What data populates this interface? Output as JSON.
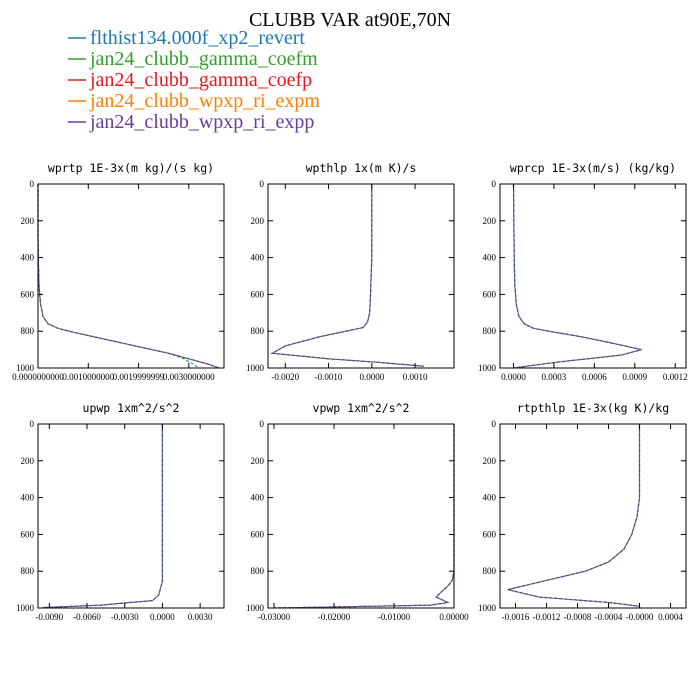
{
  "title": "CLUBB VAR at90E,70N",
  "legend": [
    {
      "label": "flthist134.000f_xp2_revert",
      "color": "#1f78b4"
    },
    {
      "label": "jan24_clubb_gamma_coefm",
      "color": "#33a02c"
    },
    {
      "label": "jan24_clubb_gamma_coefp",
      "color": "#e31a1c"
    },
    {
      "label": "jan24_clubb_wpxp_ri_expm",
      "color": "#ff7f00"
    },
    {
      "label": "jan24_clubb_wpxp_ri_expp",
      "color": "#6a3d9a"
    }
  ],
  "chart_data": [
    {
      "type": "line",
      "title": "wprtp  1E-3x(m kg)/(s kg)",
      "xlim": [
        0,
        0.0037
      ],
      "ylim": [
        1000,
        0
      ],
      "xticks": [
        0,
        0.001,
        0.002,
        0.003
      ],
      "xtick_labels": [
        "0.0000000000",
        "0.0010000000",
        "0.0019999999",
        "0.0030000000"
      ],
      "yticks": [
        0,
        200,
        400,
        600,
        800,
        1000
      ],
      "series": [
        {
          "x": [
            0,
            0,
            1e-05,
            2e-05,
            5e-05,
            0.0001,
            0.0002,
            0.0004,
            0.0007,
            0.0011,
            0.0016,
            0.0021,
            0.0026,
            0.003,
            0.0034,
            0.0036
          ],
          "y": [
            0,
            300,
            450,
            550,
            650,
            720,
            760,
            785,
            805,
            830,
            860,
            890,
            920,
            950,
            980,
            1000
          ]
        },
        {
          "x": [
            0,
            0,
            1e-05,
            2e-05,
            5e-05,
            0.0001,
            0.0002,
            0.0004,
            0.0007,
            0.0011,
            0.0016,
            0.0021,
            0.0026,
            0.0029,
            0.0031,
            0.0032
          ],
          "y": [
            0,
            300,
            450,
            550,
            650,
            720,
            760,
            785,
            805,
            830,
            860,
            890,
            920,
            950,
            980,
            1000
          ]
        },
        {
          "x": [
            0,
            0,
            1e-05,
            2e-05,
            5e-05,
            0.0001,
            0.0002,
            0.0004,
            0.0007,
            0.0011,
            0.0016,
            0.0021,
            0.0026,
            0.003,
            0.0034,
            0.0036
          ],
          "y": [
            0,
            300,
            450,
            550,
            650,
            720,
            760,
            785,
            805,
            830,
            860,
            890,
            920,
            950,
            980,
            1000
          ]
        },
        {
          "x": [
            0,
            0,
            1e-05,
            2e-05,
            5e-05,
            0.0001,
            0.0002,
            0.0004,
            0.0007,
            0.0011,
            0.0016,
            0.0021,
            0.0026,
            0.003,
            0.0034,
            0.0036
          ],
          "y": [
            0,
            300,
            450,
            550,
            650,
            720,
            760,
            785,
            805,
            830,
            860,
            890,
            920,
            950,
            980,
            1000
          ]
        },
        {
          "x": [
            0,
            0,
            1e-05,
            2e-05,
            5e-05,
            0.0001,
            0.0002,
            0.0004,
            0.0007,
            0.0011,
            0.0016,
            0.0021,
            0.0026,
            0.003,
            0.0034,
            0.0036
          ],
          "y": [
            0,
            300,
            450,
            550,
            650,
            720,
            760,
            785,
            805,
            830,
            860,
            890,
            920,
            950,
            980,
            1000
          ]
        }
      ]
    },
    {
      "type": "line",
      "title": "wpthlp  1x(m K)/s",
      "xlim": [
        -0.0024,
        0.0019
      ],
      "ylim": [
        1000,
        0
      ],
      "xticks": [
        -0.002,
        -0.001,
        0,
        0.001
      ],
      "xtick_labels": [
        "-0.0020",
        "-0.0010",
        "0.0000",
        "0.0010"
      ],
      "yticks": [
        0,
        200,
        400,
        600,
        800,
        1000
      ],
      "series": [
        {
          "x": [
            0,
            0,
            -3e-05,
            -5e-05,
            -0.0001,
            -0.0002,
            -0.0006,
            -0.0012,
            -0.002,
            -0.0023,
            -0.001,
            0.0002,
            0.0012
          ],
          "y": [
            0,
            400,
            600,
            700,
            750,
            780,
            800,
            830,
            880,
            920,
            950,
            970,
            990
          ]
        },
        {
          "x": [
            0,
            0,
            -3e-05,
            -5e-05,
            -0.0001,
            -0.0002,
            -0.0006,
            -0.0012,
            -0.002,
            -0.0023,
            -0.001,
            0.0002,
            0.0012
          ],
          "y": [
            0,
            400,
            600,
            700,
            750,
            780,
            800,
            830,
            880,
            920,
            950,
            970,
            990
          ]
        },
        {
          "x": [
            0,
            0,
            -3e-05,
            -5e-05,
            -0.0001,
            -0.0002,
            -0.0006,
            -0.0012,
            -0.002,
            -0.0023,
            -0.001,
            0.0002,
            0.0012
          ],
          "y": [
            0,
            400,
            600,
            700,
            750,
            780,
            800,
            830,
            880,
            920,
            950,
            970,
            990
          ]
        },
        {
          "x": [
            0,
            0,
            -3e-05,
            -5e-05,
            -0.0001,
            -0.0002,
            -0.0006,
            -0.0012,
            -0.002,
            -0.0023,
            -0.001,
            0.0002,
            0.0012
          ],
          "y": [
            0,
            400,
            600,
            700,
            750,
            780,
            800,
            830,
            880,
            920,
            950,
            970,
            990
          ]
        },
        {
          "x": [
            0,
            0,
            -3e-05,
            -5e-05,
            -0.0001,
            -0.0002,
            -0.0006,
            -0.0012,
            -0.002,
            -0.0023,
            -0.001,
            0.0002,
            0.0012
          ],
          "y": [
            0,
            400,
            600,
            700,
            750,
            780,
            800,
            830,
            880,
            920,
            950,
            970,
            990
          ]
        }
      ]
    },
    {
      "type": "line",
      "title": "wprcp  1E-3x(m/s) (kg/kg)",
      "xlim": [
        -0.0001,
        0.00128
      ],
      "ylim": [
        1000,
        0
      ],
      "xticks": [
        0,
        0.0003,
        0.0006,
        0.0009,
        0.0012
      ],
      "xtick_labels": [
        "0.0000",
        "0.0003",
        "0.0006",
        "0.0009",
        "0.0012"
      ],
      "yticks": [
        0,
        200,
        400,
        600,
        800,
        1000
      ],
      "series": [
        {
          "x": [
            0,
            5e-06,
            1e-05,
            2e-05,
            4e-05,
            8e-05,
            0.00015,
            0.0003,
            0.0005,
            0.0007,
            0.00095,
            0.0008,
            0.0003,
            0
          ],
          "y": [
            0,
            400,
            550,
            650,
            720,
            760,
            785,
            805,
            830,
            860,
            900,
            930,
            970,
            1000
          ]
        },
        {
          "x": [
            0,
            5e-06,
            1e-05,
            2e-05,
            4e-05,
            8e-05,
            0.00015,
            0.0003,
            0.0005,
            0.0007,
            0.00095,
            0.0008,
            0.0003,
            0
          ],
          "y": [
            0,
            400,
            550,
            650,
            720,
            760,
            785,
            805,
            830,
            860,
            900,
            930,
            970,
            1000
          ]
        },
        {
          "x": [
            0,
            5e-06,
            1e-05,
            2e-05,
            4e-05,
            8e-05,
            0.00015,
            0.0003,
            0.0005,
            0.0007,
            0.00095,
            0.0008,
            0.0003,
            0
          ],
          "y": [
            0,
            400,
            550,
            650,
            720,
            760,
            785,
            805,
            830,
            860,
            900,
            930,
            970,
            1000
          ]
        },
        {
          "x": [
            0,
            5e-06,
            1e-05,
            2e-05,
            4e-05,
            8e-05,
            0.00015,
            0.0003,
            0.0005,
            0.0007,
            0.00095,
            0.0008,
            0.0003,
            0
          ],
          "y": [
            0,
            400,
            550,
            650,
            720,
            760,
            785,
            805,
            830,
            860,
            900,
            930,
            970,
            1000
          ]
        },
        {
          "x": [
            0,
            5e-06,
            1e-05,
            2e-05,
            4e-05,
            8e-05,
            0.00015,
            0.0003,
            0.0005,
            0.0007,
            0.00095,
            0.0008,
            0.0003,
            0
          ],
          "y": [
            0,
            400,
            550,
            650,
            720,
            760,
            785,
            805,
            830,
            860,
            900,
            930,
            970,
            1000
          ]
        }
      ]
    },
    {
      "type": "line",
      "title": "upwp  1xm^2/s^2",
      "xlim": [
        -0.0099,
        0.0049
      ],
      "ylim": [
        1000,
        0
      ],
      "xticks": [
        -0.009,
        -0.006,
        -0.003,
        0,
        0.003
      ],
      "xtick_labels": [
        "-0.0090",
        "-0.0060",
        "-0.0030",
        "0.0000",
        "0.0030"
      ],
      "yticks": [
        0,
        200,
        400,
        600,
        800,
        1000
      ],
      "series": [
        {
          "x": [
            0,
            0,
            -0.0001,
            -0.0003,
            -0.0008,
            -0.005,
            -0.0095
          ],
          "y": [
            0,
            850,
            880,
            930,
            960,
            985,
            998
          ]
        },
        {
          "x": [
            0,
            0,
            -0.0001,
            -0.0003,
            -0.0008,
            -0.005,
            -0.0095
          ],
          "y": [
            0,
            850,
            880,
            930,
            960,
            985,
            998
          ]
        },
        {
          "x": [
            0,
            0,
            -0.0001,
            -0.0003,
            -0.0008,
            -0.005,
            -0.0095
          ],
          "y": [
            0,
            850,
            880,
            930,
            960,
            985,
            998
          ]
        },
        {
          "x": [
            0,
            0,
            -0.0001,
            -0.0003,
            -0.0008,
            -0.005,
            -0.0095
          ],
          "y": [
            0,
            850,
            880,
            930,
            960,
            985,
            998
          ]
        },
        {
          "x": [
            0,
            0,
            -0.0001,
            -0.0003,
            -0.0008,
            -0.005,
            -0.0095
          ],
          "y": [
            0,
            850,
            880,
            930,
            960,
            985,
            998
          ]
        }
      ]
    },
    {
      "type": "line",
      "title": "vpwp  1xm^2/s^2",
      "xlim": [
        -0.031,
        0.0
      ],
      "ylim": [
        1000,
        0
      ],
      "xticks": [
        -0.03,
        -0.02,
        -0.01,
        0
      ],
      "xtick_labels": [
        "-0.03000",
        "-0.02000",
        "-0.01000",
        "0.00000"
      ],
      "yticks": [
        0,
        200,
        400,
        600,
        800,
        1000
      ],
      "series": [
        {
          "x": [
            0,
            0,
            -0.0003,
            -0.001,
            -0.002,
            -0.003,
            -0.002,
            -0.001,
            -0.004,
            -0.03
          ],
          "y": [
            0,
            800,
            850,
            880,
            910,
            940,
            955,
            970,
            985,
            1000
          ]
        },
        {
          "x": [
            0,
            0,
            -0.0003,
            -0.001,
            -0.002,
            -0.003,
            -0.002,
            -0.001,
            -0.004,
            -0.03
          ],
          "y": [
            0,
            800,
            850,
            880,
            910,
            940,
            955,
            970,
            985,
            1000
          ]
        },
        {
          "x": [
            0,
            0,
            -0.0003,
            -0.001,
            -0.002,
            -0.003,
            -0.002,
            -0.001,
            -0.004,
            -0.03
          ],
          "y": [
            0,
            800,
            850,
            880,
            910,
            940,
            955,
            970,
            985,
            1000
          ]
        },
        {
          "x": [
            0,
            0,
            -0.0003,
            -0.001,
            -0.002,
            -0.003,
            -0.002,
            -0.001,
            -0.004,
            -0.03
          ],
          "y": [
            0,
            800,
            850,
            880,
            910,
            940,
            955,
            970,
            985,
            1000
          ]
        },
        {
          "x": [
            0,
            0,
            -0.0003,
            -0.001,
            -0.002,
            -0.003,
            -0.002,
            -0.001,
            -0.004,
            -0.03
          ],
          "y": [
            0,
            800,
            850,
            880,
            910,
            940,
            955,
            970,
            985,
            1000
          ]
        }
      ]
    },
    {
      "type": "line",
      "title": "rtpthlp  1E-3x(kg K)/kg",
      "xlim": [
        -0.0018,
        0.0006
      ],
      "ylim": [
        1000,
        0
      ],
      "xticks": [
        -0.0016,
        -0.0012,
        -0.0008,
        -0.0004,
        0,
        0.0004
      ],
      "xtick_labels": [
        "-0.0016",
        "-0.0012",
        "-0.0008",
        "-0.0004",
        "-0.0000",
        "0.0004"
      ],
      "yticks": [
        0,
        200,
        400,
        600,
        800,
        1000
      ],
      "series": [
        {
          "x": [
            0,
            0,
            -3e-05,
            -0.0001,
            -0.0002,
            -0.0004,
            -0.0007,
            -0.0012,
            -0.0017,
            -0.0013,
            -0.0004,
            0,
            0
          ],
          "y": [
            0,
            400,
            500,
            600,
            680,
            750,
            800,
            850,
            900,
            940,
            970,
            990,
            1000
          ]
        },
        {
          "x": [
            0,
            0,
            -3e-05,
            -0.0001,
            -0.0002,
            -0.0004,
            -0.0007,
            -0.0012,
            -0.0017,
            -0.0013,
            -0.0004,
            0,
            0
          ],
          "y": [
            0,
            400,
            500,
            600,
            680,
            750,
            800,
            850,
            900,
            940,
            970,
            990,
            1000
          ]
        },
        {
          "x": [
            0,
            0,
            -3e-05,
            -0.0001,
            -0.0002,
            -0.0004,
            -0.0007,
            -0.0012,
            -0.0017,
            -0.0013,
            -0.0004,
            0,
            0
          ],
          "y": [
            0,
            400,
            500,
            600,
            680,
            750,
            800,
            850,
            900,
            940,
            970,
            990,
            1000
          ]
        },
        {
          "x": [
            0,
            0,
            -3e-05,
            -0.0001,
            -0.0002,
            -0.0004,
            -0.0007,
            -0.0012,
            -0.0017,
            -0.0013,
            -0.0004,
            0,
            0
          ],
          "y": [
            0,
            400,
            500,
            600,
            680,
            750,
            800,
            850,
            900,
            940,
            970,
            990,
            1000
          ]
        },
        {
          "x": [
            0,
            0,
            -3e-05,
            -0.0001,
            -0.0002,
            -0.0004,
            -0.0007,
            -0.0012,
            -0.0017,
            -0.0013,
            -0.0004,
            0,
            0
          ],
          "y": [
            0,
            400,
            500,
            600,
            680,
            750,
            800,
            850,
            900,
            940,
            970,
            990,
            1000
          ]
        }
      ]
    }
  ]
}
